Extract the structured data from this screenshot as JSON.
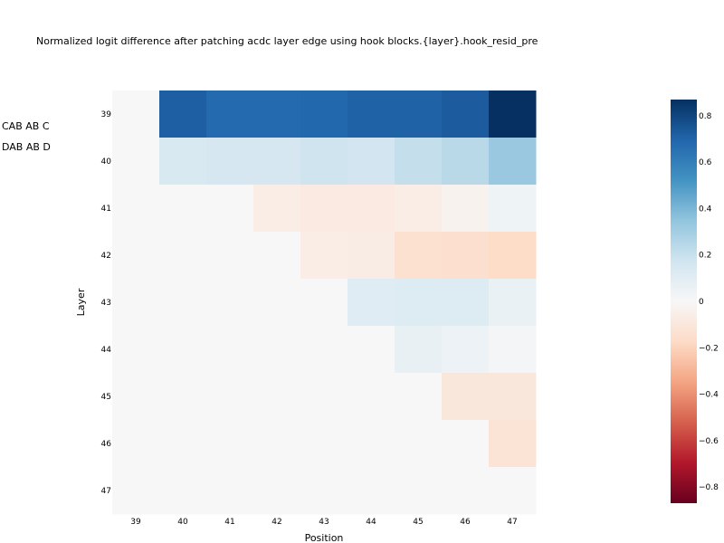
{
  "title": "Normalized logit difference after patching acdc layer edge using hook blocks.{layer}.hook_resid_pre",
  "side_labels": [
    "CAB AB C",
    "DAB AB D"
  ],
  "chart_data": {
    "type": "heatmap",
    "title": "Normalized logit difference after patching acdc layer edge using hook blocks.{layer}.hook_resid_pre",
    "xlabel": "Position",
    "ylabel": "Layer",
    "x": [
      "39",
      "40",
      "41",
      "42",
      "43",
      "44",
      "45",
      "46",
      "47"
    ],
    "y": [
      "39",
      "40",
      "41",
      "42",
      "43",
      "44",
      "45",
      "46",
      "47"
    ],
    "values": [
      [
        0.0,
        0.72,
        0.68,
        0.68,
        0.69,
        0.71,
        0.71,
        0.73,
        0.87
      ],
      [
        0.0,
        0.14,
        0.15,
        0.15,
        0.18,
        0.17,
        0.21,
        0.24,
        0.33
      ],
      [
        0.0,
        0.0,
        0.0,
        -0.06,
        -0.08,
        -0.08,
        -0.06,
        -0.03,
        0.04
      ],
      [
        0.0,
        0.0,
        0.0,
        0.0,
        -0.06,
        -0.07,
        -0.14,
        -0.15,
        -0.17
      ],
      [
        0.0,
        0.0,
        0.0,
        0.0,
        0.0,
        0.11,
        0.12,
        0.12,
        0.06
      ],
      [
        0.0,
        0.0,
        0.0,
        0.0,
        0.0,
        0.0,
        0.07,
        0.05,
        0.02
      ],
      [
        0.0,
        0.0,
        0.0,
        0.0,
        0.0,
        0.0,
        0.0,
        -0.1,
        -0.1
      ],
      [
        0.0,
        0.0,
        0.0,
        0.0,
        0.0,
        0.0,
        0.0,
        0.0,
        -0.12
      ],
      [
        0.0,
        0.0,
        0.0,
        0.0,
        0.0,
        0.0,
        0.0,
        0.0,
        0.0
      ]
    ],
    "zrange": [
      -0.87,
      0.87
    ],
    "colorscale": "RdBu",
    "colorbar_ticks": [
      "0.8",
      "0.6",
      "0.4",
      "0.2",
      "0",
      "−0.2",
      "−0.4",
      "−0.6",
      "−0.8"
    ],
    "colorbar_tick_values": [
      0.8,
      0.6,
      0.4,
      0.2,
      0,
      -0.2,
      -0.4,
      -0.6,
      -0.8
    ],
    "grid": false
  }
}
